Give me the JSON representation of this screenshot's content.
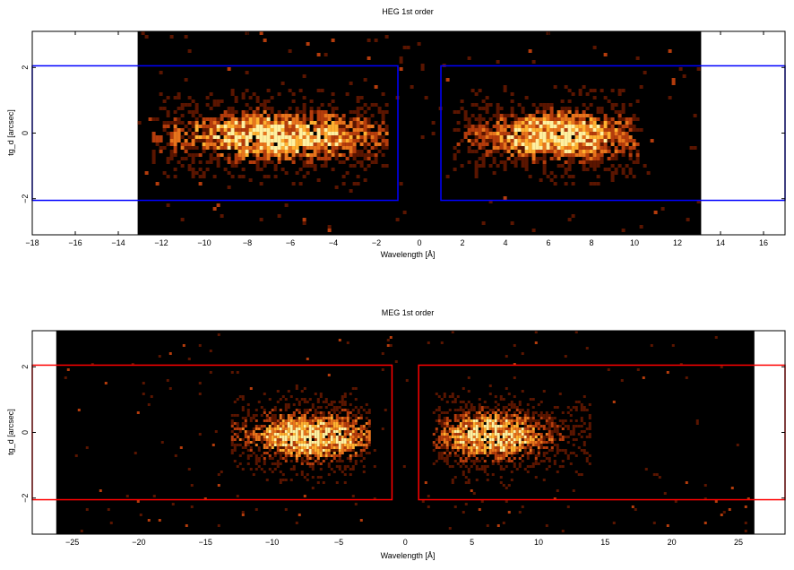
{
  "chart_data": [
    {
      "type": "heatmap",
      "title": "HEG 1st order",
      "xlabel": "Wavelength [Å]",
      "ylabel": "tg_d [arcsec]",
      "xlim": [
        -18,
        17
      ],
      "ylim": [
        -3.1,
        3.1
      ],
      "xticks": [
        -18,
        -16,
        -14,
        -12,
        -10,
        -8,
        -6,
        -4,
        -2,
        0,
        2,
        4,
        6,
        8,
        10,
        12,
        14,
        16
      ],
      "yticks": [
        -2,
        0,
        2
      ],
      "grid": false,
      "data_region_x": [
        -13.1,
        13.1
      ],
      "colormap": [
        "#000000",
        "#5a1500",
        "#b43c0c",
        "#e8741c",
        "#ffb030",
        "#fff0a0"
      ],
      "box_color": "#0000ff",
      "extraction_regions": [
        {
          "x": [
            -18,
            -1
          ],
          "y": [
            -2.05,
            2.05
          ]
        },
        {
          "x": [
            1,
            17
          ],
          "y": [
            -2.05,
            2.05
          ]
        }
      ],
      "source_arms": [
        {
          "x_range": [
            -12.5,
            -1.5
          ],
          "peak": -6.5,
          "sigma_x": 3.0,
          "density": 1.0
        },
        {
          "x_range": [
            1.5,
            10.3
          ],
          "peak": 6.5,
          "sigma_x": 2.3,
          "density": 1.0
        }
      ],
      "source_y_center": -0.1
    },
    {
      "type": "heatmap",
      "title": "MEG 1st order",
      "xlabel": "Wavelength [Å]",
      "ylabel": "tg_d [arcsec]",
      "xlim": [
        -28,
        28.5
      ],
      "ylim": [
        -3.1,
        3.1
      ],
      "xticks": [
        -25,
        -20,
        -15,
        -10,
        -5,
        0,
        5,
        10,
        15,
        20,
        25
      ],
      "yticks": [
        -2,
        0,
        2
      ],
      "grid": false,
      "data_region_x": [
        -26.2,
        26.2
      ],
      "colormap": [
        "#000000",
        "#5a1500",
        "#b43c0c",
        "#e8741c",
        "#ffb030",
        "#fff0a0"
      ],
      "box_color": "#ff0000",
      "extraction_regions": [
        {
          "x": [
            -28,
            -1
          ],
          "y": [
            -2.05,
            2.05
          ]
        },
        {
          "x": [
            1,
            28.5
          ],
          "y": [
            -2.05,
            2.05
          ]
        }
      ],
      "source_arms": [
        {
          "x_range": [
            -13,
            -2.5
          ],
          "peak": -7.0,
          "sigma_x": 3.0,
          "density": 1.0
        },
        {
          "x_range": [
            2.0,
            14.0
          ],
          "peak": 6.5,
          "sigma_x": 2.5,
          "density": 1.0
        }
      ],
      "source_y_center": -0.1
    }
  ]
}
